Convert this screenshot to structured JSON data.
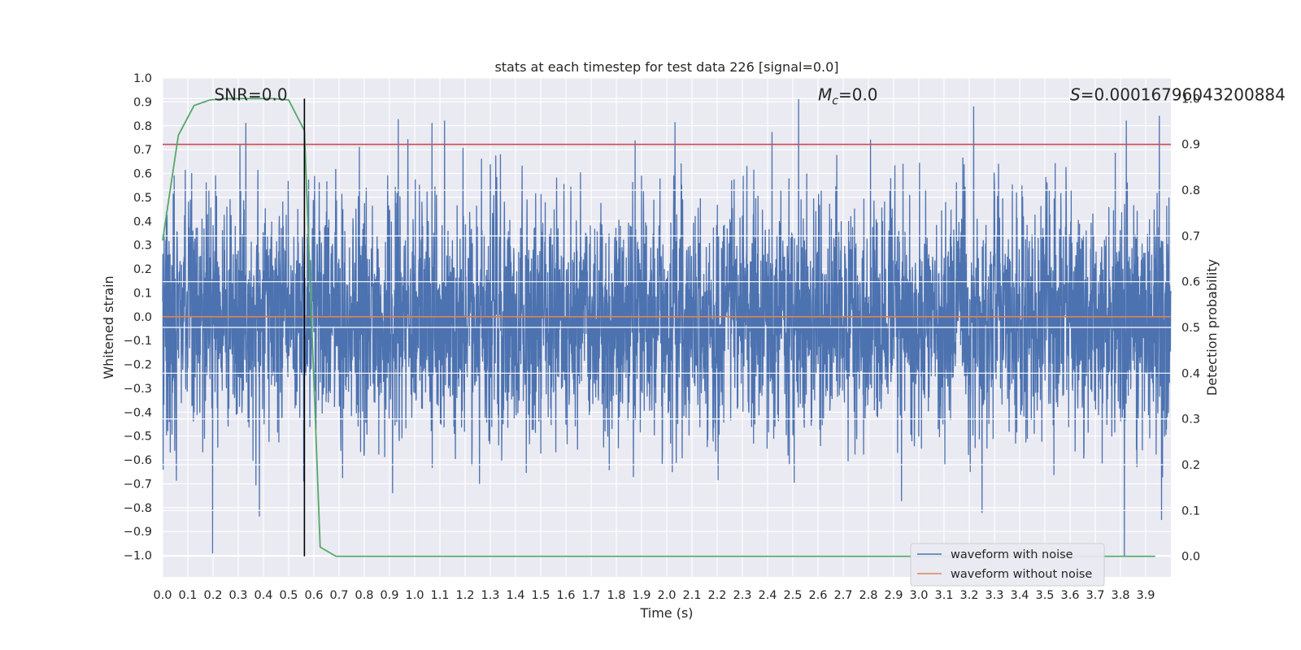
{
  "chart_data": {
    "type": "line",
    "title": "stats at each timestep for test data 226 [signal=0.0]",
    "xlabel": "Time (s)",
    "ylabel_left": "Whitened strain",
    "ylabel_right": "Detection probability",
    "xlim": [
      0.0,
      4.0
    ],
    "ylim_left": [
      -1.09,
      1.0
    ],
    "ylim_right": [
      -0.045,
      1.045
    ],
    "x_ticks": [
      "0.0",
      "0.1",
      "0.2",
      "0.3",
      "0.4",
      "0.5",
      "0.6",
      "0.7",
      "0.8",
      "0.9",
      "1.0",
      "1.1",
      "1.2",
      "1.3",
      "1.4",
      "1.5",
      "1.6",
      "1.7",
      "1.8",
      "1.9",
      "2.0",
      "2.1",
      "2.2",
      "2.3",
      "2.4",
      "2.5",
      "2.6",
      "2.7",
      "2.8",
      "2.9",
      "3.0",
      "3.1",
      "3.2",
      "3.3",
      "3.4",
      "3.5",
      "3.6",
      "3.7",
      "3.8",
      "3.9"
    ],
    "y_ticks_left": [
      "1.0",
      "0.9",
      "0.8",
      "0.7",
      "0.6",
      "0.5",
      "0.4",
      "0.3",
      "0.2",
      "0.1",
      "0.0",
      "−0.1",
      "−0.2",
      "−0.3",
      "−0.4",
      "−0.5",
      "−0.6",
      "−0.7",
      "−0.8",
      "−0.9",
      "−1.0"
    ],
    "y_ticks_right": [
      "1.0",
      "0.9",
      "0.8",
      "0.7",
      "0.6",
      "0.5",
      "0.4",
      "0.3",
      "0.2",
      "0.1",
      "0.0"
    ],
    "grid": true,
    "legend_position": "bottom-right",
    "annotations": [
      {
        "id": "snr",
        "text": "SNR=0.0",
        "x": 0.35,
        "y": 0.93
      },
      {
        "id": "mc",
        "text": "=0.0",
        "symbol": "M",
        "sub": "c",
        "x": 2.6,
        "y": 0.93
      },
      {
        "id": "s",
        "text": "=0.00016796043200884",
        "symbol": "S",
        "x": 3.6,
        "y": 0.93
      }
    ],
    "series": [
      {
        "name": "waveform with noise",
        "axis": "left",
        "color": "#4c72b0",
        "generator": {
          "t_start": 0.0,
          "t_end": 4.0,
          "count": 4096,
          "sigma": 0.25,
          "clip": [
            -1.0,
            0.92
          ],
          "seed": 226
        },
        "spikes": [
          [
            0.115,
            0.6
          ],
          [
            0.198,
            -0.99
          ],
          [
            0.33,
            0.81
          ],
          [
            1.069,
            0.81
          ],
          [
            1.118,
            0.82
          ],
          [
            2.523,
            0.91
          ],
          [
            3.815,
            -1.0
          ],
          [
            3.823,
            0.82
          ],
          [
            3.954,
            0.84
          ],
          [
            3.963,
            -0.85
          ]
        ]
      },
      {
        "name": "waveform without noise",
        "axis": "left",
        "color": "#dd8452",
        "x": [
          0.0,
          4.0
        ],
        "y": [
          0.0,
          0.0
        ]
      },
      {
        "name": "detection probability",
        "axis": "right",
        "color": "#55a868",
        "x": [
          0.0,
          0.0625,
          0.125,
          0.1875,
          0.25,
          0.3125,
          0.375,
          0.4375,
          0.5,
          0.5625,
          0.625,
          0.6875,
          0.75,
          0.8125,
          0.875,
          1.0,
          1.5,
          2.0,
          2.5,
          3.0,
          3.5,
          3.9375
        ],
        "y": [
          0.69,
          0.92,
          0.985,
          0.997,
          1.0,
          1.0,
          1.0,
          1.0,
          0.997,
          0.93,
          0.02,
          0.0,
          0.0,
          0.0,
          0.0,
          0.0,
          0.0,
          0.0,
          0.0,
          0.0,
          0.0,
          0.0
        ]
      }
    ],
    "threshold_line": {
      "axis": "right",
      "y": 0.9,
      "color": "#c44e52"
    },
    "vertical_marker": {
      "x": 0.5625,
      "y_right_top": 1.0,
      "color": "#000000"
    }
  }
}
